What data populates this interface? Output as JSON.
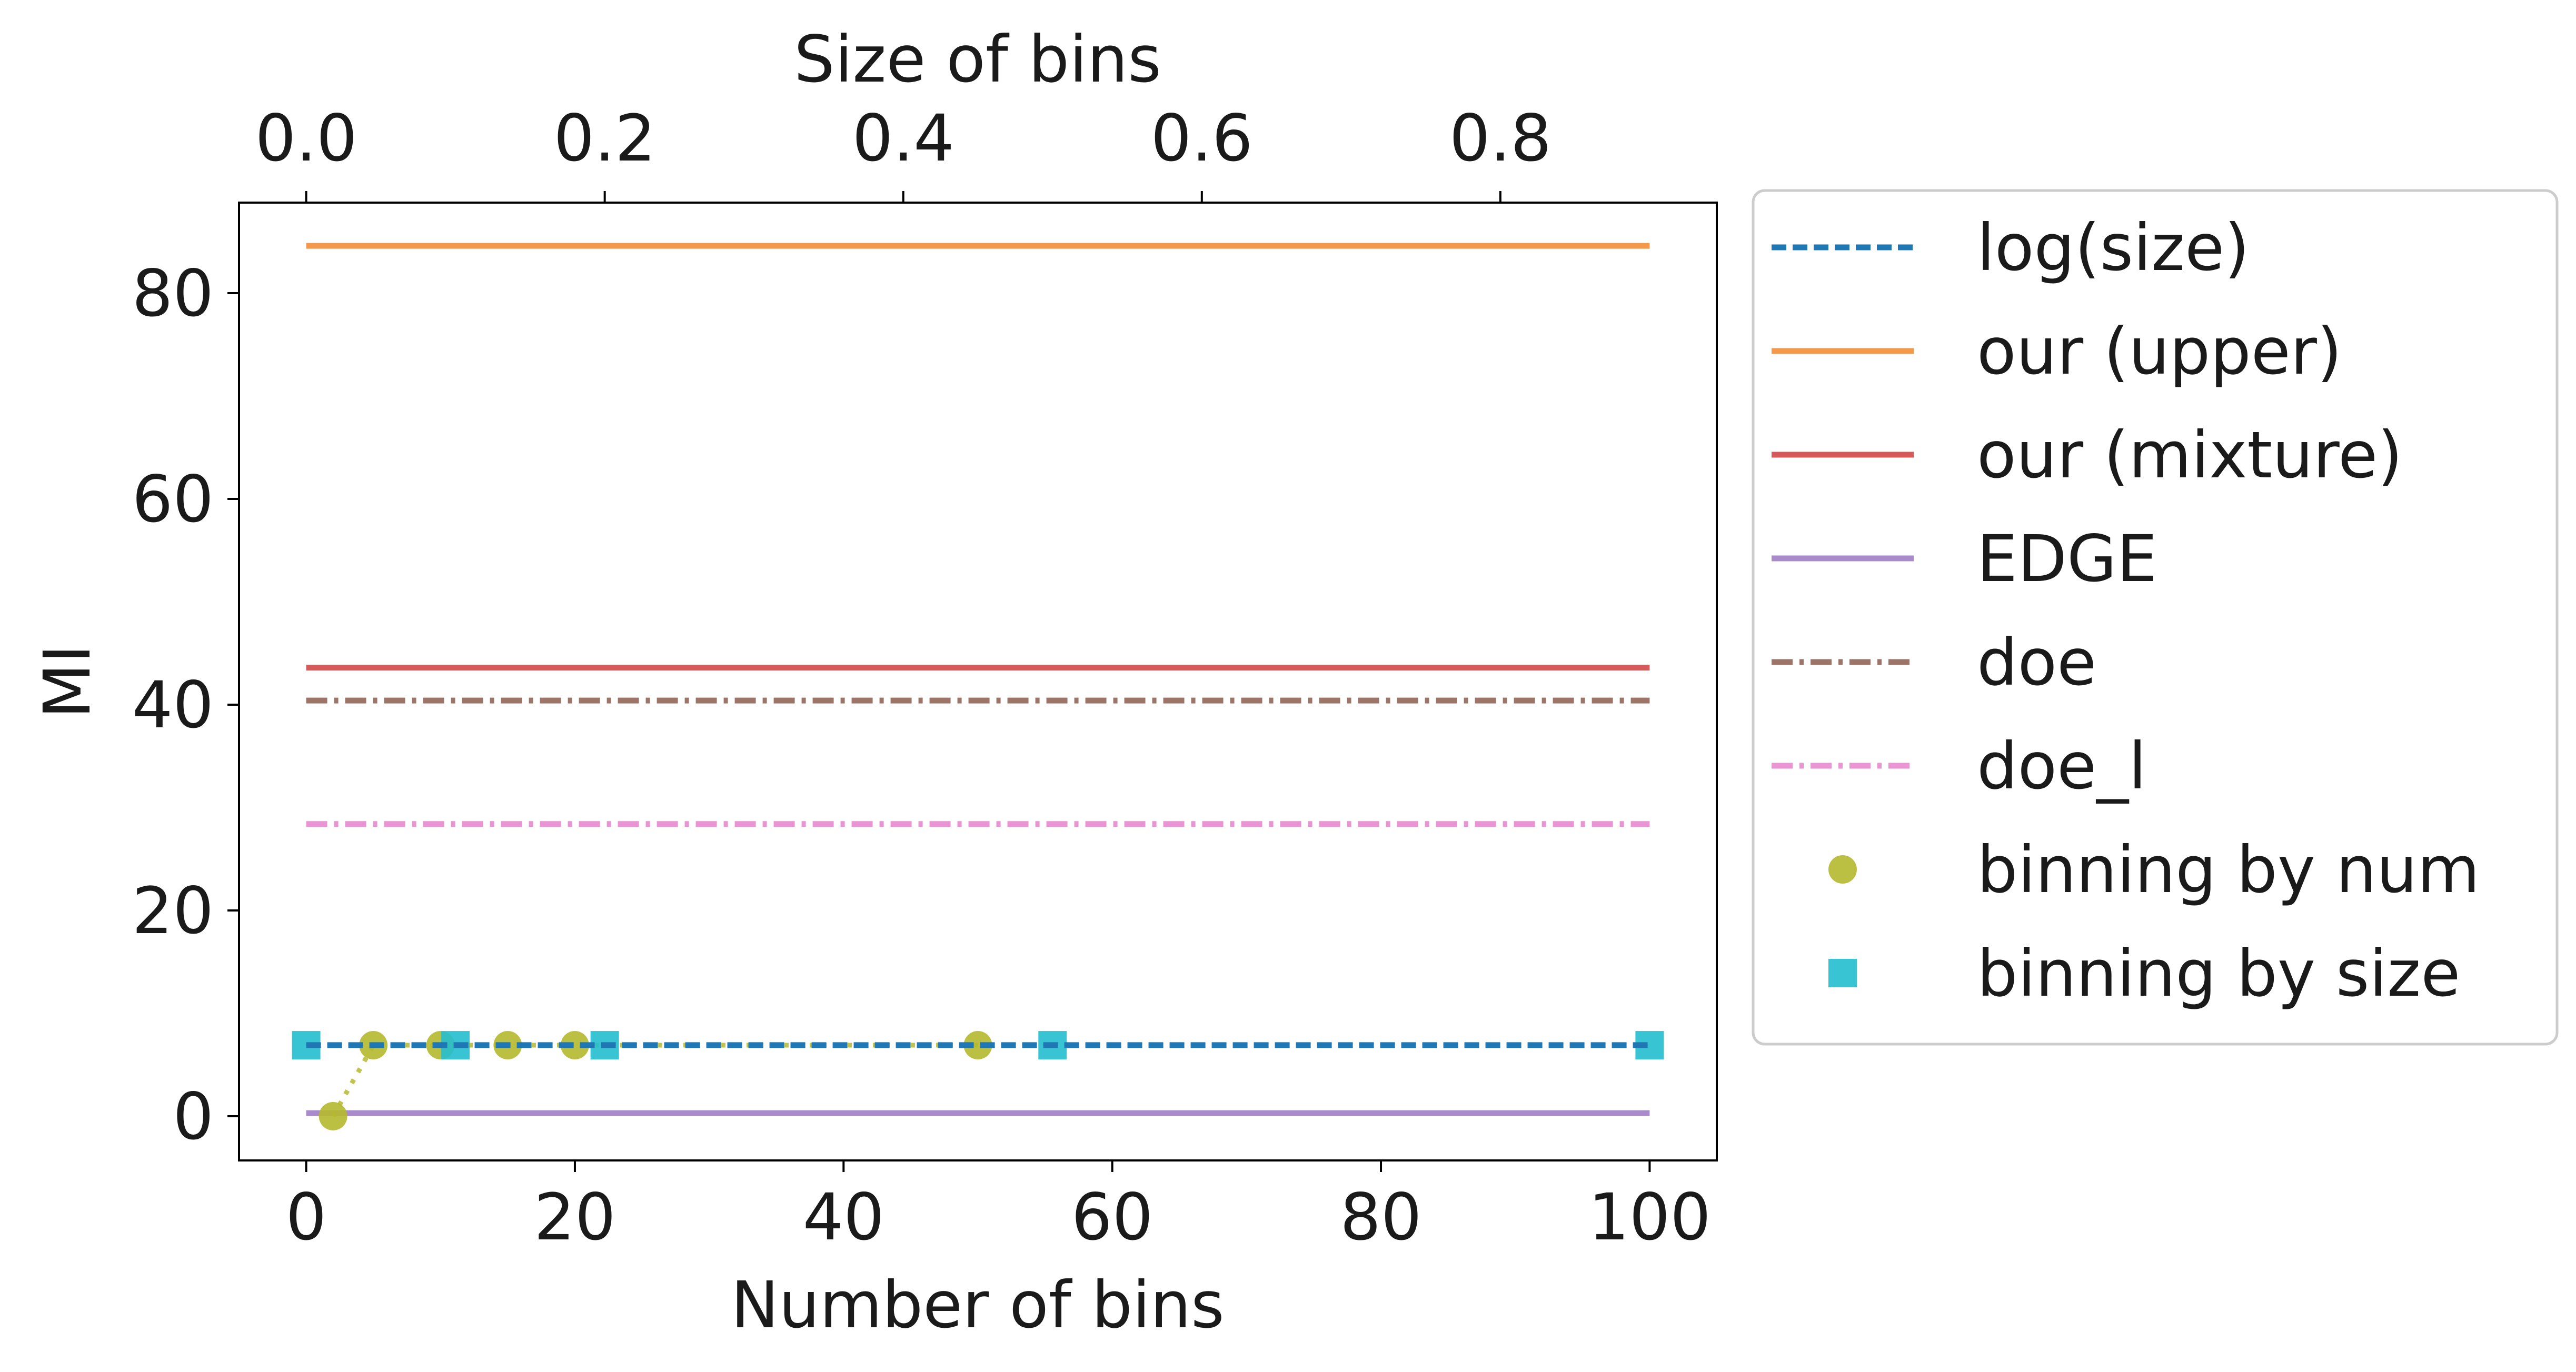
{
  "chart_data": {
    "type": "line",
    "xlabel": "Number of bins",
    "x2label": "Size of bins",
    "ylabel": "MI",
    "xlim": [
      -5,
      105
    ],
    "ylim": [
      -4.3,
      88.8
    ],
    "x2lim": [
      -0.045,
      0.945
    ],
    "xticks": [
      0,
      20,
      40,
      60,
      80,
      100
    ],
    "x2ticks": [
      0.0,
      0.2,
      0.4,
      0.6,
      0.8
    ],
    "x2tick_labels": [
      "0.0",
      "0.2",
      "0.4",
      "0.6",
      "0.8"
    ],
    "yticks": [
      0,
      20,
      40,
      60,
      80
    ],
    "grid": false,
    "legend_position": "outside-right",
    "series": [
      {
        "name": "log(size)",
        "kind": "line",
        "style": "dashed",
        "color": "#1f77b4",
        "x": [
          0,
          100
        ],
        "y": [
          6.91,
          6.91
        ]
      },
      {
        "name": "our (upper)",
        "kind": "line",
        "style": "solid",
        "color": "#f4994b",
        "x": [
          0,
          100
        ],
        "y": [
          84.6,
          84.6
        ]
      },
      {
        "name": "our (mixture)",
        "kind": "line",
        "style": "solid",
        "color": "#d65a5a",
        "x": [
          0,
          100
        ],
        "y": [
          43.6,
          43.6
        ]
      },
      {
        "name": "EDGE",
        "kind": "line",
        "style": "solid",
        "color": "#a98bcb",
        "x": [
          0,
          100
        ],
        "y": [
          0.3,
          0.3
        ]
      },
      {
        "name": "doe",
        "kind": "line",
        "style": "dashdot",
        "color": "#9d7568",
        "x": [
          0,
          100
        ],
        "y": [
          40.4,
          40.4
        ]
      },
      {
        "name": "doe_l",
        "kind": "line",
        "style": "dashdot",
        "color": "#ea95d3",
        "x": [
          0,
          100
        ],
        "y": [
          28.4,
          28.4
        ]
      },
      {
        "name": "binning by num",
        "kind": "scatter",
        "marker": "circle",
        "color": "#b5b92e",
        "connector": "dotted",
        "x": [
          2,
          5,
          10,
          15,
          20,
          50
        ],
        "y": [
          0.0,
          6.9,
          6.9,
          6.9,
          6.9,
          6.9
        ]
      },
      {
        "name": "binning by size",
        "kind": "scatter",
        "marker": "square",
        "color": "#23becf",
        "connector": "dashed",
        "x2": [
          0.0,
          0.1,
          0.2,
          0.5,
          0.9
        ],
        "y": [
          6.9,
          6.9,
          6.9,
          6.9,
          6.9
        ]
      }
    ]
  }
}
